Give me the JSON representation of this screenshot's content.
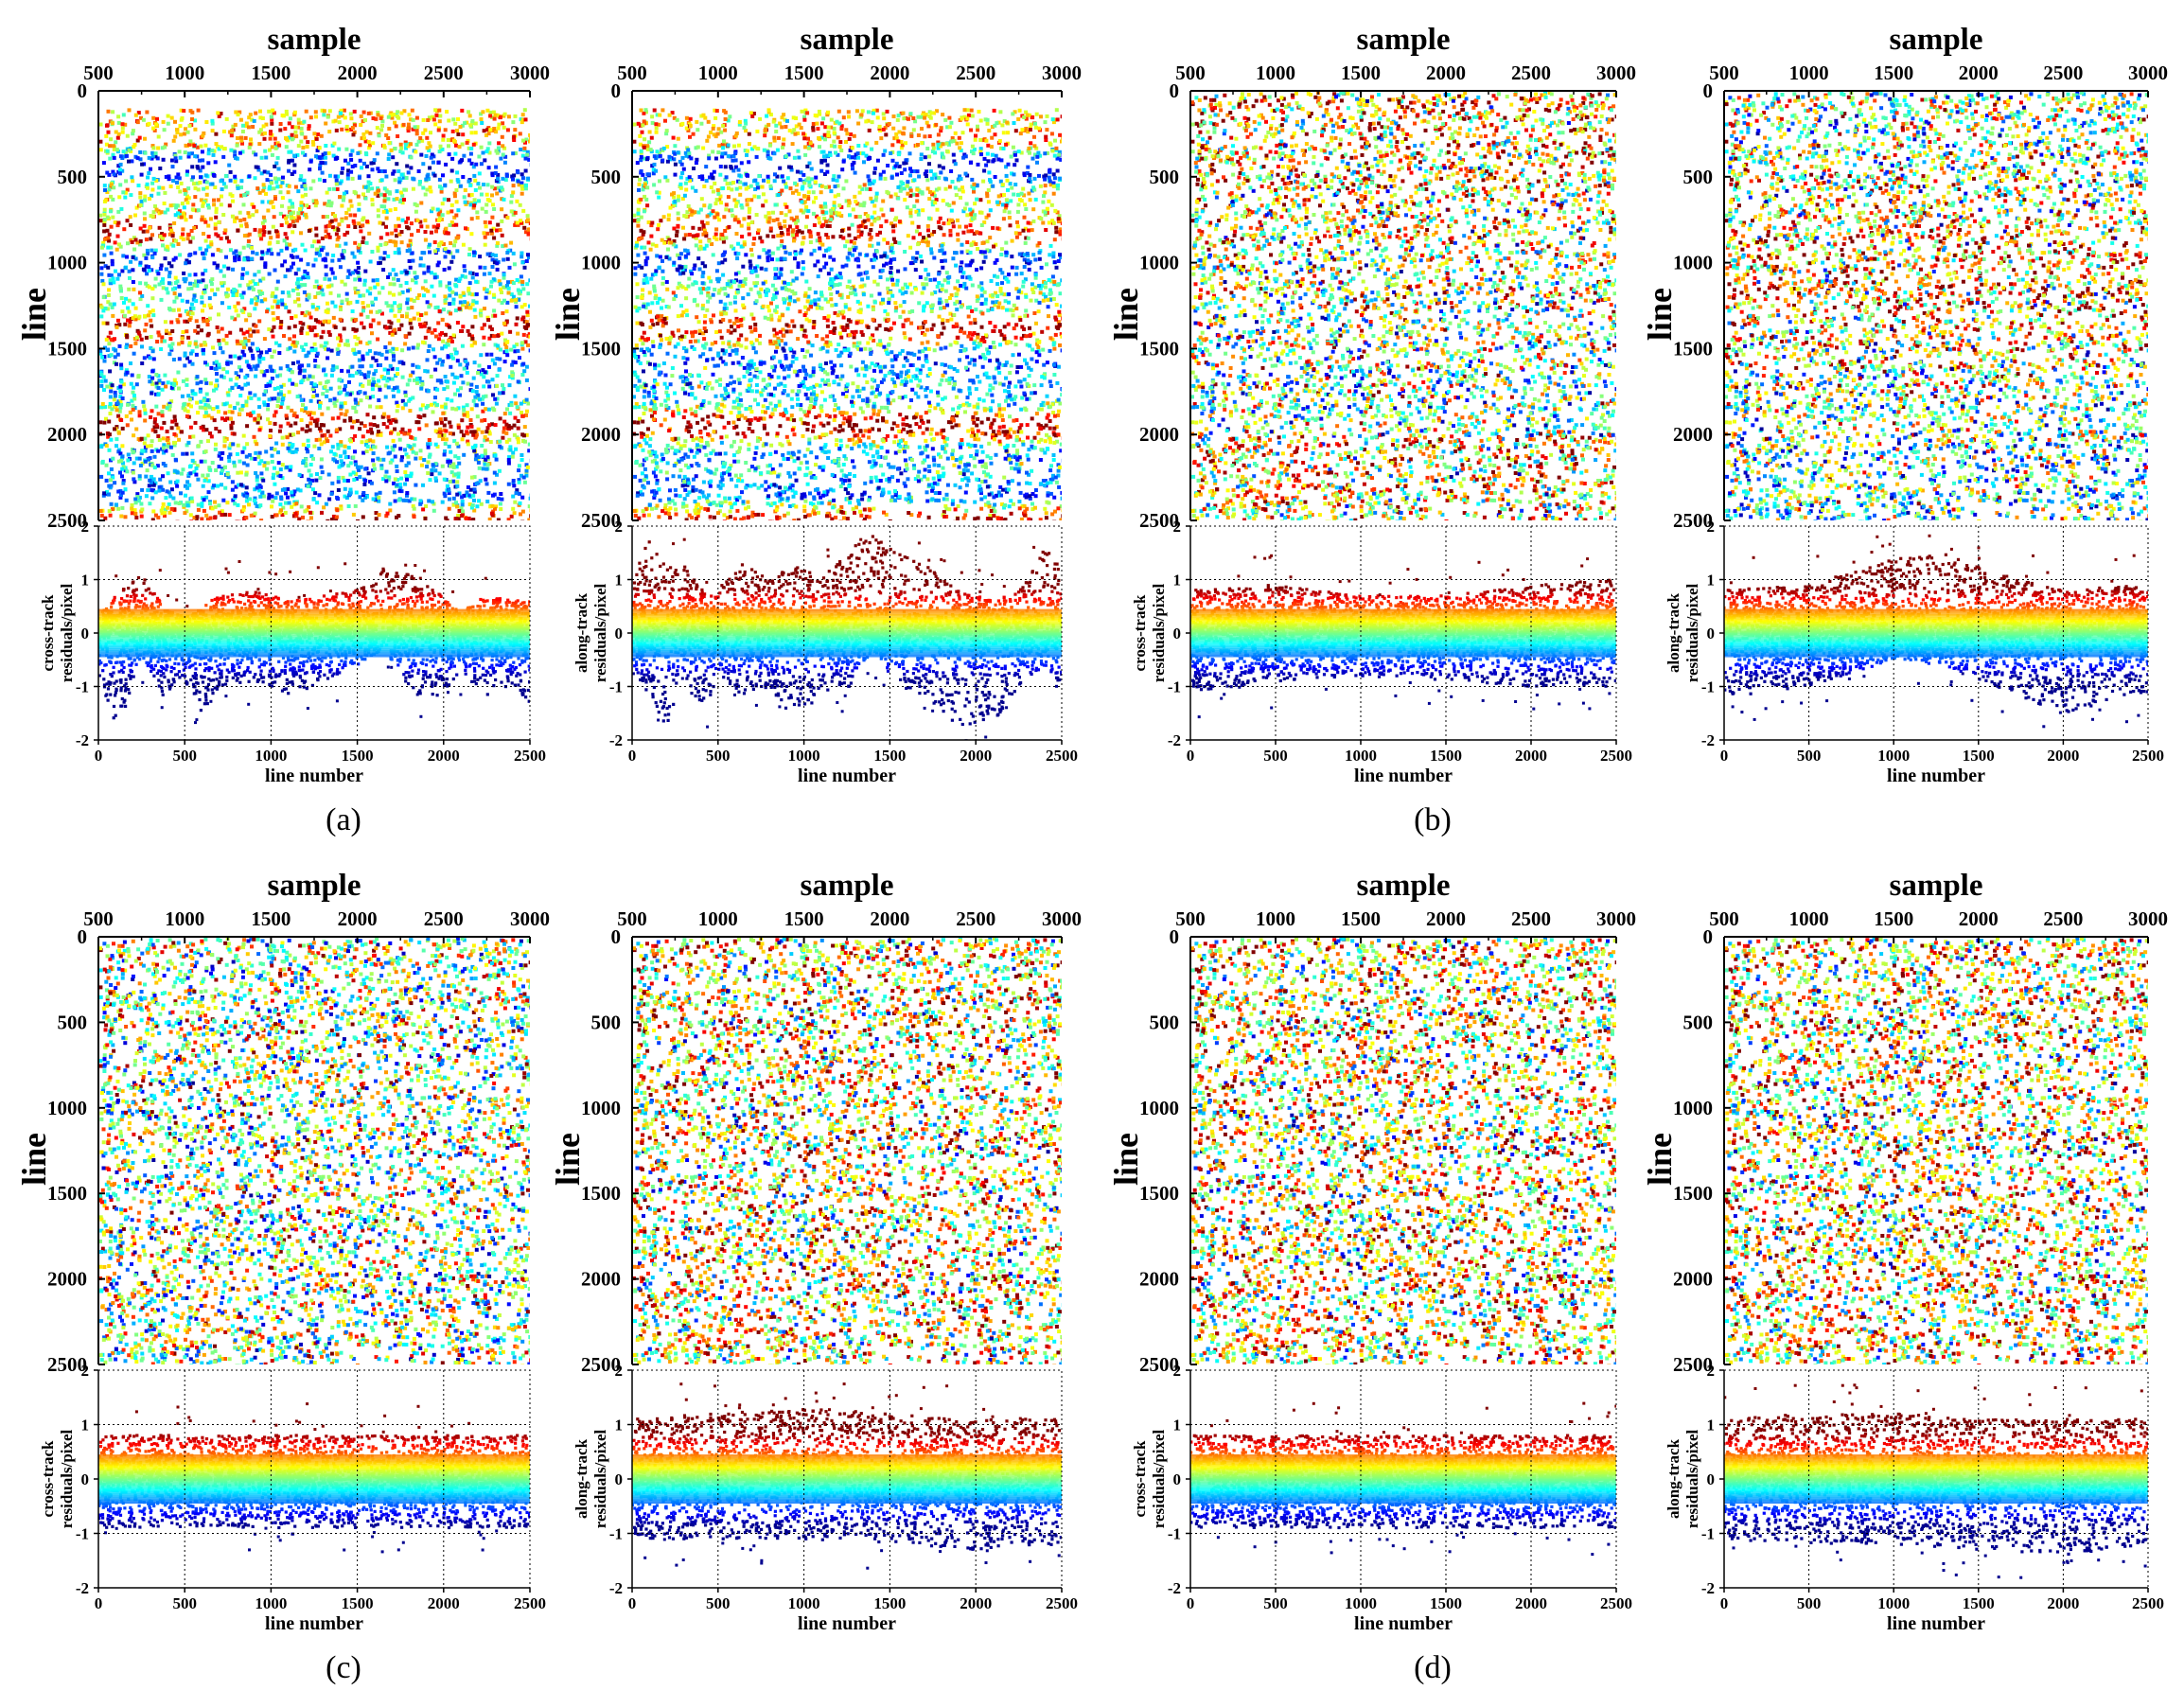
{
  "figure": {
    "panel_labels": [
      "(a)",
      "(b)",
      "(c)",
      "(d)"
    ],
    "colormap": [
      "#00008f",
      "#0000ff",
      "#0080ff",
      "#00ffff",
      "#80ff80",
      "#ffff00",
      "#ff8000",
      "#ff0000",
      "#800000"
    ]
  },
  "chart_data": [
    {
      "panel": "a",
      "type": "scatter",
      "map": {
        "title": "sample",
        "ylabel": "line",
        "xlim": [
          500,
          3000
        ],
        "ylim": [
          0,
          2500
        ],
        "xticks": [
          "500",
          "1000",
          "1500",
          "2000",
          "2500",
          "3000"
        ],
        "yticks": [
          "0",
          "500",
          "1000",
          "1500",
          "2000",
          "2500"
        ],
        "y_inverted": true,
        "pattern": "banded"
      },
      "residuals": {
        "ylabel": [
          "cross-track",
          "residuals/pixel"
        ],
        "xlabel": "line number",
        "xlim": [
          0,
          2500
        ],
        "ylim": [
          -2,
          2
        ],
        "xticks": [
          "0",
          "500",
          "1000",
          "1500",
          "2000",
          "2500"
        ],
        "yticks": [
          "2",
          "1",
          "0",
          "-1",
          "-2"
        ],
        "grid": true,
        "envelope_profile": [
          {
            "x": 0,
            "hi": 0.3,
            "lo": -0.6
          },
          {
            "x": 100,
            "hi": 0.7,
            "lo": -1.9
          },
          {
            "x": 250,
            "hi": 1.1,
            "lo": -0.5
          },
          {
            "x": 380,
            "hi": 0.5,
            "lo": -1.2
          },
          {
            "x": 500,
            "hi": 0.3,
            "lo": -0.9
          },
          {
            "x": 600,
            "hi": 0.5,
            "lo": -1.5
          },
          {
            "x": 700,
            "hi": 0.7,
            "lo": -1.0
          },
          {
            "x": 900,
            "hi": 0.8,
            "lo": -0.9
          },
          {
            "x": 1100,
            "hi": 0.6,
            "lo": -1.2
          },
          {
            "x": 1300,
            "hi": 0.7,
            "lo": -0.9
          },
          {
            "x": 1500,
            "hi": 0.8,
            "lo": -0.6
          },
          {
            "x": 1650,
            "hi": 1.2,
            "lo": -0.3
          },
          {
            "x": 1800,
            "hi": 1.1,
            "lo": -1.0
          },
          {
            "x": 1950,
            "hi": 0.8,
            "lo": -1.3
          },
          {
            "x": 2100,
            "hi": 0.4,
            "lo": -0.7
          },
          {
            "x": 2250,
            "hi": 0.7,
            "lo": -1.2
          },
          {
            "x": 2400,
            "hi": 0.6,
            "lo": -1.0
          },
          {
            "x": 2500,
            "hi": 0.7,
            "lo": -1.3
          }
        ]
      }
    },
    {
      "panel": "a",
      "type": "scatter",
      "map": {
        "title": "sample",
        "ylabel": "line",
        "xlim": [
          500,
          3000
        ],
        "ylim": [
          0,
          2500
        ],
        "xticks": [
          "500",
          "1000",
          "1500",
          "2000",
          "2500",
          "3000"
        ],
        "yticks": [
          "0",
          "500",
          "1000",
          "1500",
          "2000",
          "2500"
        ],
        "y_inverted": true,
        "pattern": "banded"
      },
      "residuals": {
        "ylabel": [
          "along-track",
          "residuals/pixel"
        ],
        "xlabel": "line number",
        "xlim": [
          0,
          2500
        ],
        "ylim": [
          -2,
          2
        ],
        "xticks": [
          "0",
          "500",
          "1000",
          "1500",
          "2000",
          "2500"
        ],
        "yticks": [
          "2",
          "1",
          "0",
          "-1",
          "-2"
        ],
        "grid": true,
        "envelope_profile": [
          {
            "x": 0,
            "hi": 1.0,
            "lo": -0.6
          },
          {
            "x": 100,
            "hi": 1.8,
            "lo": -1.2
          },
          {
            "x": 200,
            "hi": 1.2,
            "lo": -1.8
          },
          {
            "x": 300,
            "hi": 1.3,
            "lo": -0.7
          },
          {
            "x": 400,
            "hi": 0.8,
            "lo": -1.7
          },
          {
            "x": 500,
            "hi": 0.9,
            "lo": -0.8
          },
          {
            "x": 650,
            "hi": 1.3,
            "lo": -1.2
          },
          {
            "x": 800,
            "hi": 1.0,
            "lo": -1.0
          },
          {
            "x": 950,
            "hi": 1.3,
            "lo": -1.7
          },
          {
            "x": 1100,
            "hi": 1.0,
            "lo": -1.1
          },
          {
            "x": 1250,
            "hi": 1.5,
            "lo": -1.1
          },
          {
            "x": 1400,
            "hi": 1.9,
            "lo": -0.3
          },
          {
            "x": 1550,
            "hi": 1.5,
            "lo": -1.0
          },
          {
            "x": 1750,
            "hi": 1.2,
            "lo": -1.3
          },
          {
            "x": 1900,
            "hi": 0.8,
            "lo": -1.8
          },
          {
            "x": 2100,
            "hi": 0.6,
            "lo": -1.7
          },
          {
            "x": 2250,
            "hi": 0.8,
            "lo": -1.0
          },
          {
            "x": 2400,
            "hi": 1.6,
            "lo": -0.6
          },
          {
            "x": 2500,
            "hi": 1.2,
            "lo": -1.0
          }
        ]
      }
    },
    {
      "panel": "b",
      "type": "scatter",
      "map": {
        "title": "sample",
        "ylabel": "line",
        "xlim": [
          500,
          3000
        ],
        "ylim": [
          0,
          2500
        ],
        "xticks": [
          "500",
          "1000",
          "1500",
          "2000",
          "2500",
          "3000"
        ],
        "yticks": [
          "0",
          "500",
          "1000",
          "1500",
          "2000",
          "2500"
        ],
        "y_inverted": true,
        "pattern": "red-top"
      },
      "residuals": {
        "ylabel": [
          "cross-track",
          "residuals/pixel"
        ],
        "xlabel": "line number",
        "xlim": [
          0,
          2500
        ],
        "ylim": [
          -2,
          2
        ],
        "xticks": [
          "0",
          "500",
          "1000",
          "1500",
          "2000",
          "2500"
        ],
        "yticks": [
          "2",
          "1",
          "0",
          "-1",
          "-2"
        ],
        "grid": true,
        "envelope_profile": [
          {
            "x": 0,
            "hi": 0.8,
            "lo": -1.1
          },
          {
            "x": 500,
            "hi": 0.9,
            "lo": -0.9
          },
          {
            "x": 1000,
            "hi": 0.7,
            "lo": -0.8
          },
          {
            "x": 1500,
            "hi": 0.7,
            "lo": -0.9
          },
          {
            "x": 2000,
            "hi": 0.9,
            "lo": -1.0
          },
          {
            "x": 2500,
            "hi": 1.0,
            "lo": -1.0
          }
        ]
      }
    },
    {
      "panel": "b",
      "type": "scatter",
      "map": {
        "title": "sample",
        "ylabel": "line",
        "xlim": [
          500,
          3000
        ],
        "ylim": [
          0,
          2500
        ],
        "xticks": [
          "500",
          "1000",
          "1500",
          "2000",
          "2500",
          "3000"
        ],
        "yticks": [
          "0",
          "500",
          "1000",
          "1500",
          "2000",
          "2500"
        ],
        "y_inverted": true,
        "pattern": "red-middle"
      },
      "residuals": {
        "ylabel": [
          "along-track",
          "residuals/pixel"
        ],
        "xlabel": "line number",
        "xlim": [
          0,
          2500
        ],
        "ylim": [
          -2,
          2
        ],
        "xticks": [
          "0",
          "500",
          "1000",
          "1500",
          "2000",
          "2500"
        ],
        "yticks": [
          "2",
          "1",
          "0",
          "-1",
          "-2"
        ],
        "grid": true,
        "envelope_profile": [
          {
            "x": 0,
            "hi": 0.8,
            "lo": -1.2
          },
          {
            "x": 500,
            "hi": 0.9,
            "lo": -1.0
          },
          {
            "x": 1000,
            "hi": 1.4,
            "lo": -0.5
          },
          {
            "x": 1300,
            "hi": 1.5,
            "lo": -0.6
          },
          {
            "x": 1600,
            "hi": 1.1,
            "lo": -1.0
          },
          {
            "x": 2000,
            "hi": 0.8,
            "lo": -1.5
          },
          {
            "x": 2500,
            "hi": 0.9,
            "lo": -1.1
          }
        ]
      }
    },
    {
      "panel": "c",
      "type": "scatter",
      "map": {
        "title": "sample",
        "ylabel": "line",
        "xlim": [
          500,
          3000
        ],
        "ylim": [
          0,
          2500
        ],
        "xticks": [
          "500",
          "1000",
          "1500",
          "2000",
          "2500",
          "3000"
        ],
        "yticks": [
          "0",
          "500",
          "1000",
          "1500",
          "2000",
          "2500"
        ],
        "y_inverted": true,
        "pattern": "mixed"
      },
      "residuals": {
        "ylabel": [
          "cross-track",
          "residuals/pixel"
        ],
        "xlabel": "line number",
        "xlim": [
          0,
          2500
        ],
        "ylim": [
          -2,
          2
        ],
        "xticks": [
          "0",
          "500",
          "1000",
          "1500",
          "2000",
          "2500"
        ],
        "yticks": [
          "2",
          "1",
          "0",
          "-1",
          "-2"
        ],
        "grid": true,
        "envelope_profile": [
          {
            "x": 0,
            "hi": 0.8,
            "lo": -0.9
          },
          {
            "x": 500,
            "hi": 0.8,
            "lo": -0.9
          },
          {
            "x": 1000,
            "hi": 0.8,
            "lo": -0.9
          },
          {
            "x": 1500,
            "hi": 0.8,
            "lo": -0.9
          },
          {
            "x": 2000,
            "hi": 0.8,
            "lo": -0.9
          },
          {
            "x": 2500,
            "hi": 0.8,
            "lo": -0.9
          }
        ]
      }
    },
    {
      "panel": "c",
      "type": "scatter",
      "map": {
        "title": "sample",
        "ylabel": "line",
        "xlim": [
          500,
          3000
        ],
        "ylim": [
          0,
          2500
        ],
        "xticks": [
          "500",
          "1000",
          "1500",
          "2000",
          "2500",
          "3000"
        ],
        "yticks": [
          "0",
          "500",
          "1000",
          "1500",
          "2000",
          "2500"
        ],
        "y_inverted": true,
        "pattern": "mixed-warm"
      },
      "residuals": {
        "ylabel": [
          "along-track",
          "residuals/pixel"
        ],
        "xlabel": "line number",
        "xlim": [
          0,
          2500
        ],
        "ylim": [
          -2,
          2
        ],
        "xticks": [
          "0",
          "500",
          "1000",
          "1500",
          "2000",
          "2500"
        ],
        "yticks": [
          "2",
          "1",
          "0",
          "-1",
          "-2"
        ],
        "grid": true,
        "envelope_profile": [
          {
            "x": 0,
            "hi": 1.1,
            "lo": -1.1
          },
          {
            "x": 500,
            "hi": 1.2,
            "lo": -1.1
          },
          {
            "x": 1000,
            "hi": 1.3,
            "lo": -1.1
          },
          {
            "x": 1500,
            "hi": 1.2,
            "lo": -1.2
          },
          {
            "x": 2000,
            "hi": 1.1,
            "lo": -1.3
          },
          {
            "x": 2500,
            "hi": 1.1,
            "lo": -1.2
          }
        ]
      }
    },
    {
      "panel": "d",
      "type": "scatter",
      "map": {
        "title": "sample",
        "ylabel": "line",
        "xlim": [
          500,
          3000
        ],
        "ylim": [
          0,
          2500
        ],
        "xticks": [
          "500",
          "1000",
          "1500",
          "2000",
          "2500",
          "3000"
        ],
        "yticks": [
          "0",
          "500",
          "1000",
          "1500",
          "2000",
          "2500"
        ],
        "y_inverted": true,
        "pattern": "mixed-warm"
      },
      "residuals": {
        "ylabel": [
          "cross-track",
          "residuals/pixel"
        ],
        "xlabel": "line number",
        "xlim": [
          0,
          2500
        ],
        "ylim": [
          -2,
          2
        ],
        "xticks": [
          "0",
          "500",
          "1000",
          "1500",
          "2000",
          "2500"
        ],
        "yticks": [
          "2",
          "1",
          "0",
          "-1",
          "-2"
        ],
        "grid": true,
        "envelope_profile": [
          {
            "x": 0,
            "hi": 0.8,
            "lo": -0.9
          },
          {
            "x": 500,
            "hi": 0.8,
            "lo": -0.9
          },
          {
            "x": 1000,
            "hi": 0.8,
            "lo": -0.9
          },
          {
            "x": 1500,
            "hi": 0.8,
            "lo": -0.9
          },
          {
            "x": 2000,
            "hi": 0.8,
            "lo": -0.9
          },
          {
            "x": 2500,
            "hi": 0.8,
            "lo": -0.9
          }
        ]
      }
    },
    {
      "panel": "d",
      "type": "scatter",
      "map": {
        "title": "sample",
        "ylabel": "line",
        "xlim": [
          500,
          3000
        ],
        "ylim": [
          0,
          2500
        ],
        "xticks": [
          "500",
          "1000",
          "1500",
          "2000",
          "2500",
          "3000"
        ],
        "yticks": [
          "0",
          "500",
          "1000",
          "1500",
          "2000",
          "2500"
        ],
        "y_inverted": true,
        "pattern": "mixed-warm"
      },
      "residuals": {
        "ylabel": [
          "along-track",
          "residuals/pixel"
        ],
        "xlabel": "line number",
        "xlim": [
          0,
          2500
        ],
        "ylim": [
          -2,
          2
        ],
        "xticks": [
          "0",
          "500",
          "1000",
          "1500",
          "2000",
          "2500"
        ],
        "yticks": [
          "2",
          "1",
          "0",
          "-1",
          "-2"
        ],
        "grid": true,
        "envelope_profile": [
          {
            "x": 0,
            "hi": 1.1,
            "lo": -1.1
          },
          {
            "x": 500,
            "hi": 1.2,
            "lo": -1.2
          },
          {
            "x": 1000,
            "hi": 1.2,
            "lo": -1.2
          },
          {
            "x": 1500,
            "hi": 1.1,
            "lo": -1.3
          },
          {
            "x": 2000,
            "hi": 1.1,
            "lo": -1.4
          },
          {
            "x": 2500,
            "hi": 1.1,
            "lo": -1.2
          }
        ]
      }
    }
  ]
}
